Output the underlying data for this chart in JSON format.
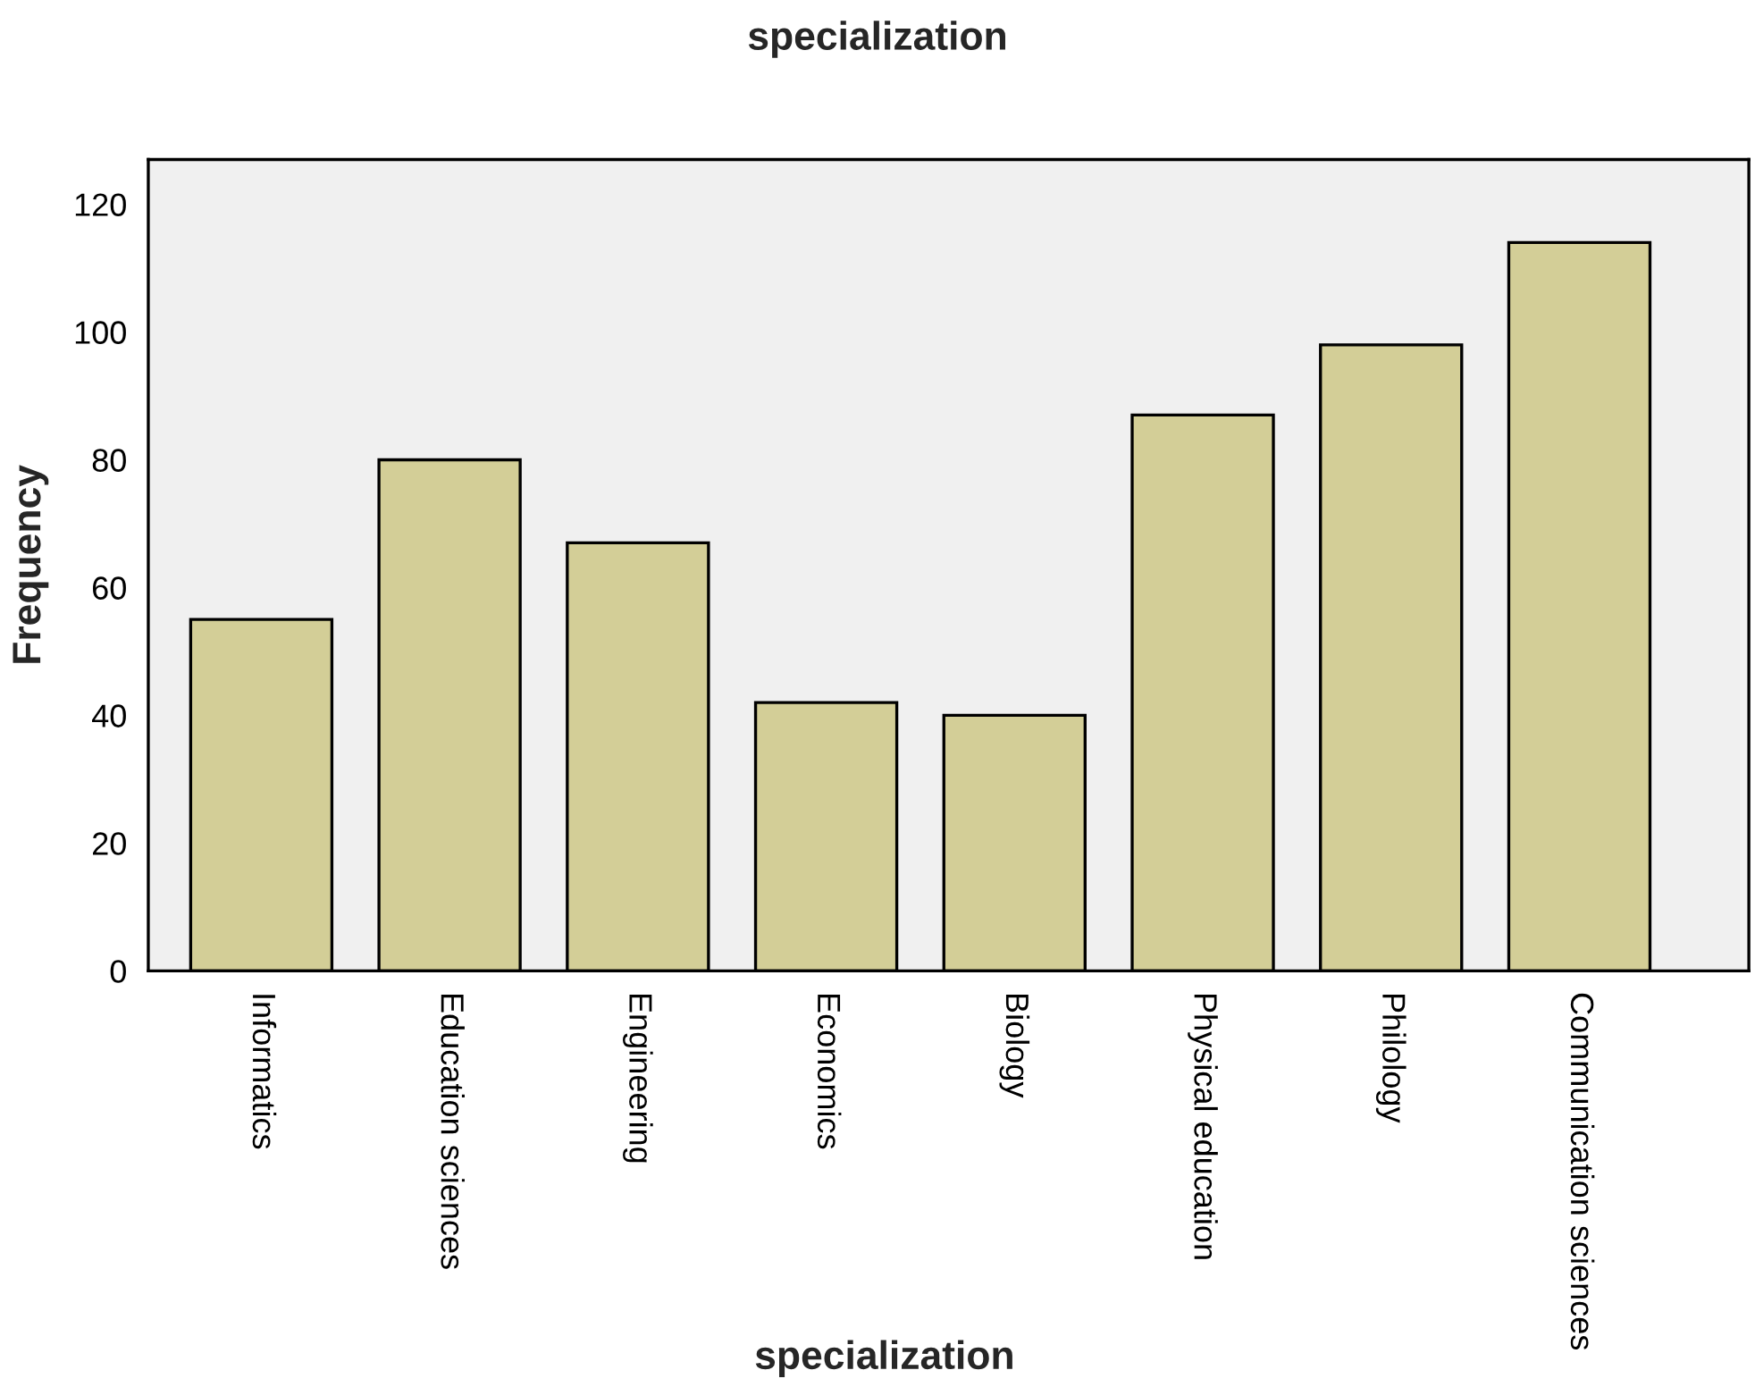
{
  "chart_data": {
    "type": "bar",
    "title": "specialization",
    "xlabel": "specialization",
    "ylabel": "Frequency",
    "categories": [
      "Informatics",
      "Education sciences",
      "Engineering",
      "Economics",
      "Biology",
      "Physical education",
      "Philology",
      "Communication sciences"
    ],
    "values": [
      55,
      80,
      67,
      42,
      40,
      87,
      98,
      114
    ],
    "color": "#d3ce97",
    "ylim": [
      0,
      127
    ],
    "yticks": [
      0,
      20,
      40,
      60,
      80,
      100,
      120
    ],
    "grid": false,
    "legend": false
  }
}
